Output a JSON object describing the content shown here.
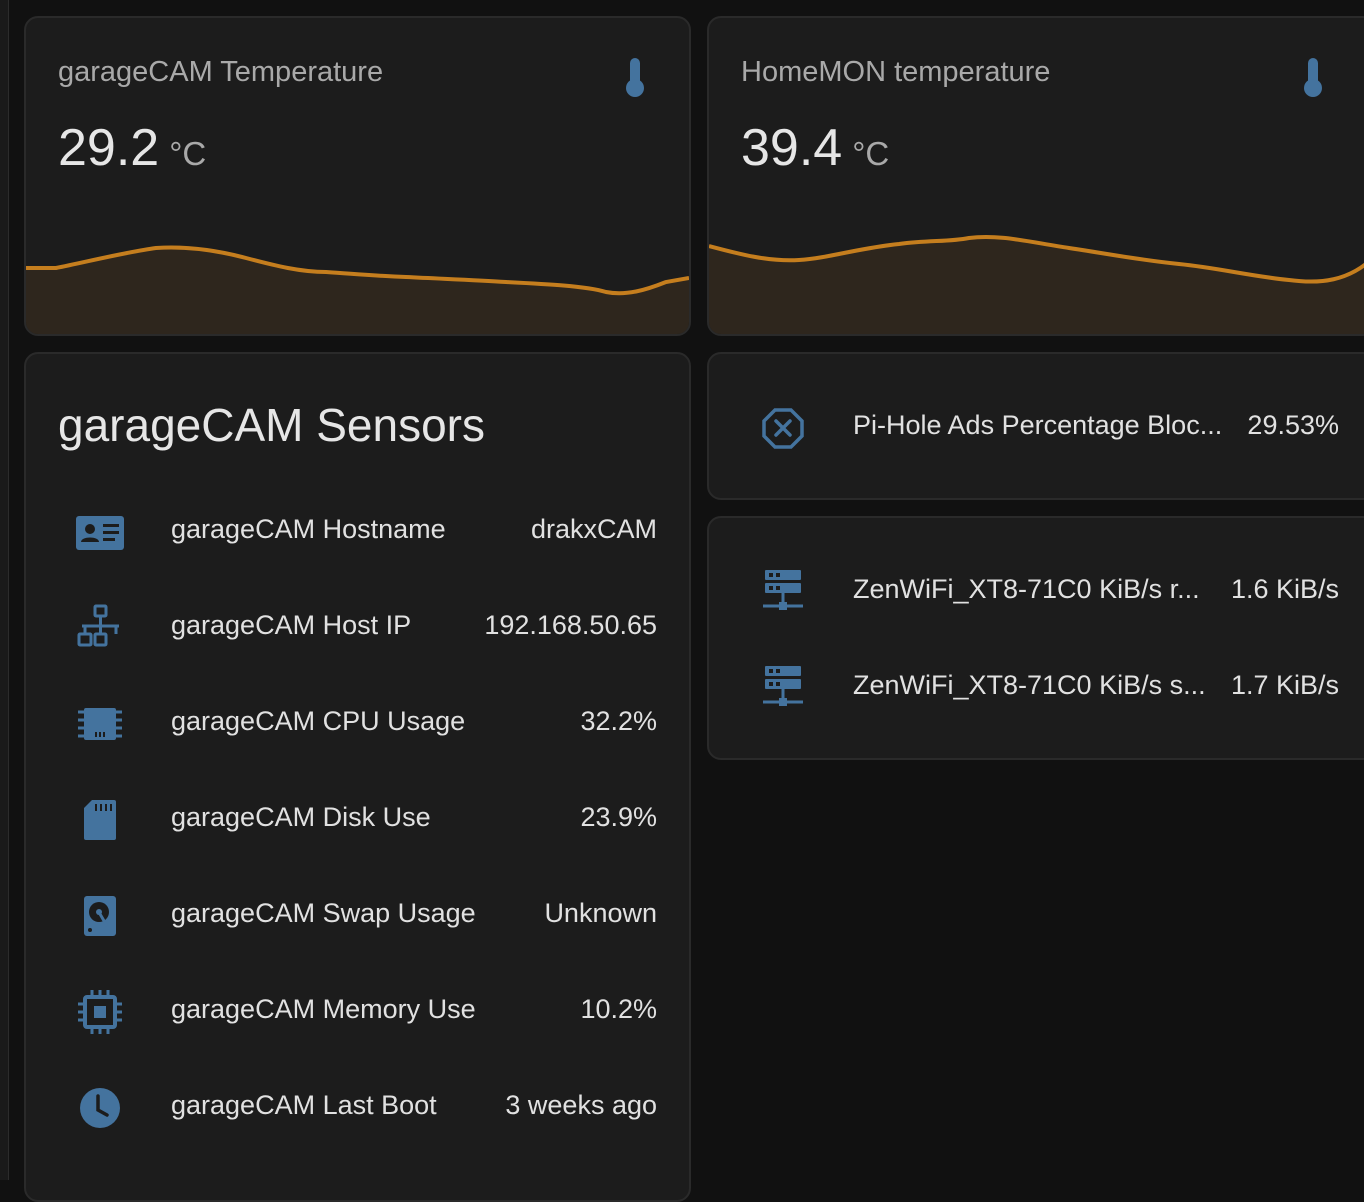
{
  "colors": {
    "accent_icon": "#44739e",
    "graph_line": "#c57e1e",
    "graph_fill": "#2e261d",
    "card_bg": "#1c1c1c",
    "page_bg": "#111111"
  },
  "cards": {
    "garagecam_temp": {
      "name": "garageCAM Temperature",
      "value": "29.2",
      "unit": "°C",
      "icon": "thermometer-icon"
    },
    "homemon_temp": {
      "name": "HomeMON temperature",
      "value": "39.4",
      "unit": "°C",
      "icon": "thermometer-icon"
    }
  },
  "sensors": {
    "title": "garageCAM Sensors",
    "rows": [
      {
        "label": "garageCAM Hostname",
        "value": "drakxCAM",
        "icon": "badge-account-icon"
      },
      {
        "label": "garageCAM Host IP",
        "value": "192.168.50.65",
        "icon": "lan-icon"
      },
      {
        "label": "garageCAM CPU Usage",
        "value": "32.2%",
        "icon": "cpu-chip-icon"
      },
      {
        "label": "garageCAM Disk Use",
        "value": "23.9%",
        "icon": "sd-card-icon"
      },
      {
        "label": "garageCAM Swap Usage",
        "value": "Unknown",
        "icon": "harddisk-icon"
      },
      {
        "label": "garageCAM Memory Use",
        "value": "10.2%",
        "icon": "memory-chip-icon"
      },
      {
        "label": "garageCAM Last Boot",
        "value": "3 weeks ago",
        "icon": "clock-icon"
      }
    ]
  },
  "pihole": {
    "label": "Pi-Hole Ads Percentage Bloc...",
    "value": "29.53%",
    "icon": "close-octagon-icon"
  },
  "network": {
    "rows": [
      {
        "label": "ZenWiFi_XT8-71C0 KiB/s r...",
        "value": "1.6 KiB/s",
        "icon": "server-network-icon"
      },
      {
        "label": "ZenWiFi_XT8-71C0 KiB/s s...",
        "value": "1.7 KiB/s",
        "icon": "server-network-icon"
      }
    ]
  }
}
